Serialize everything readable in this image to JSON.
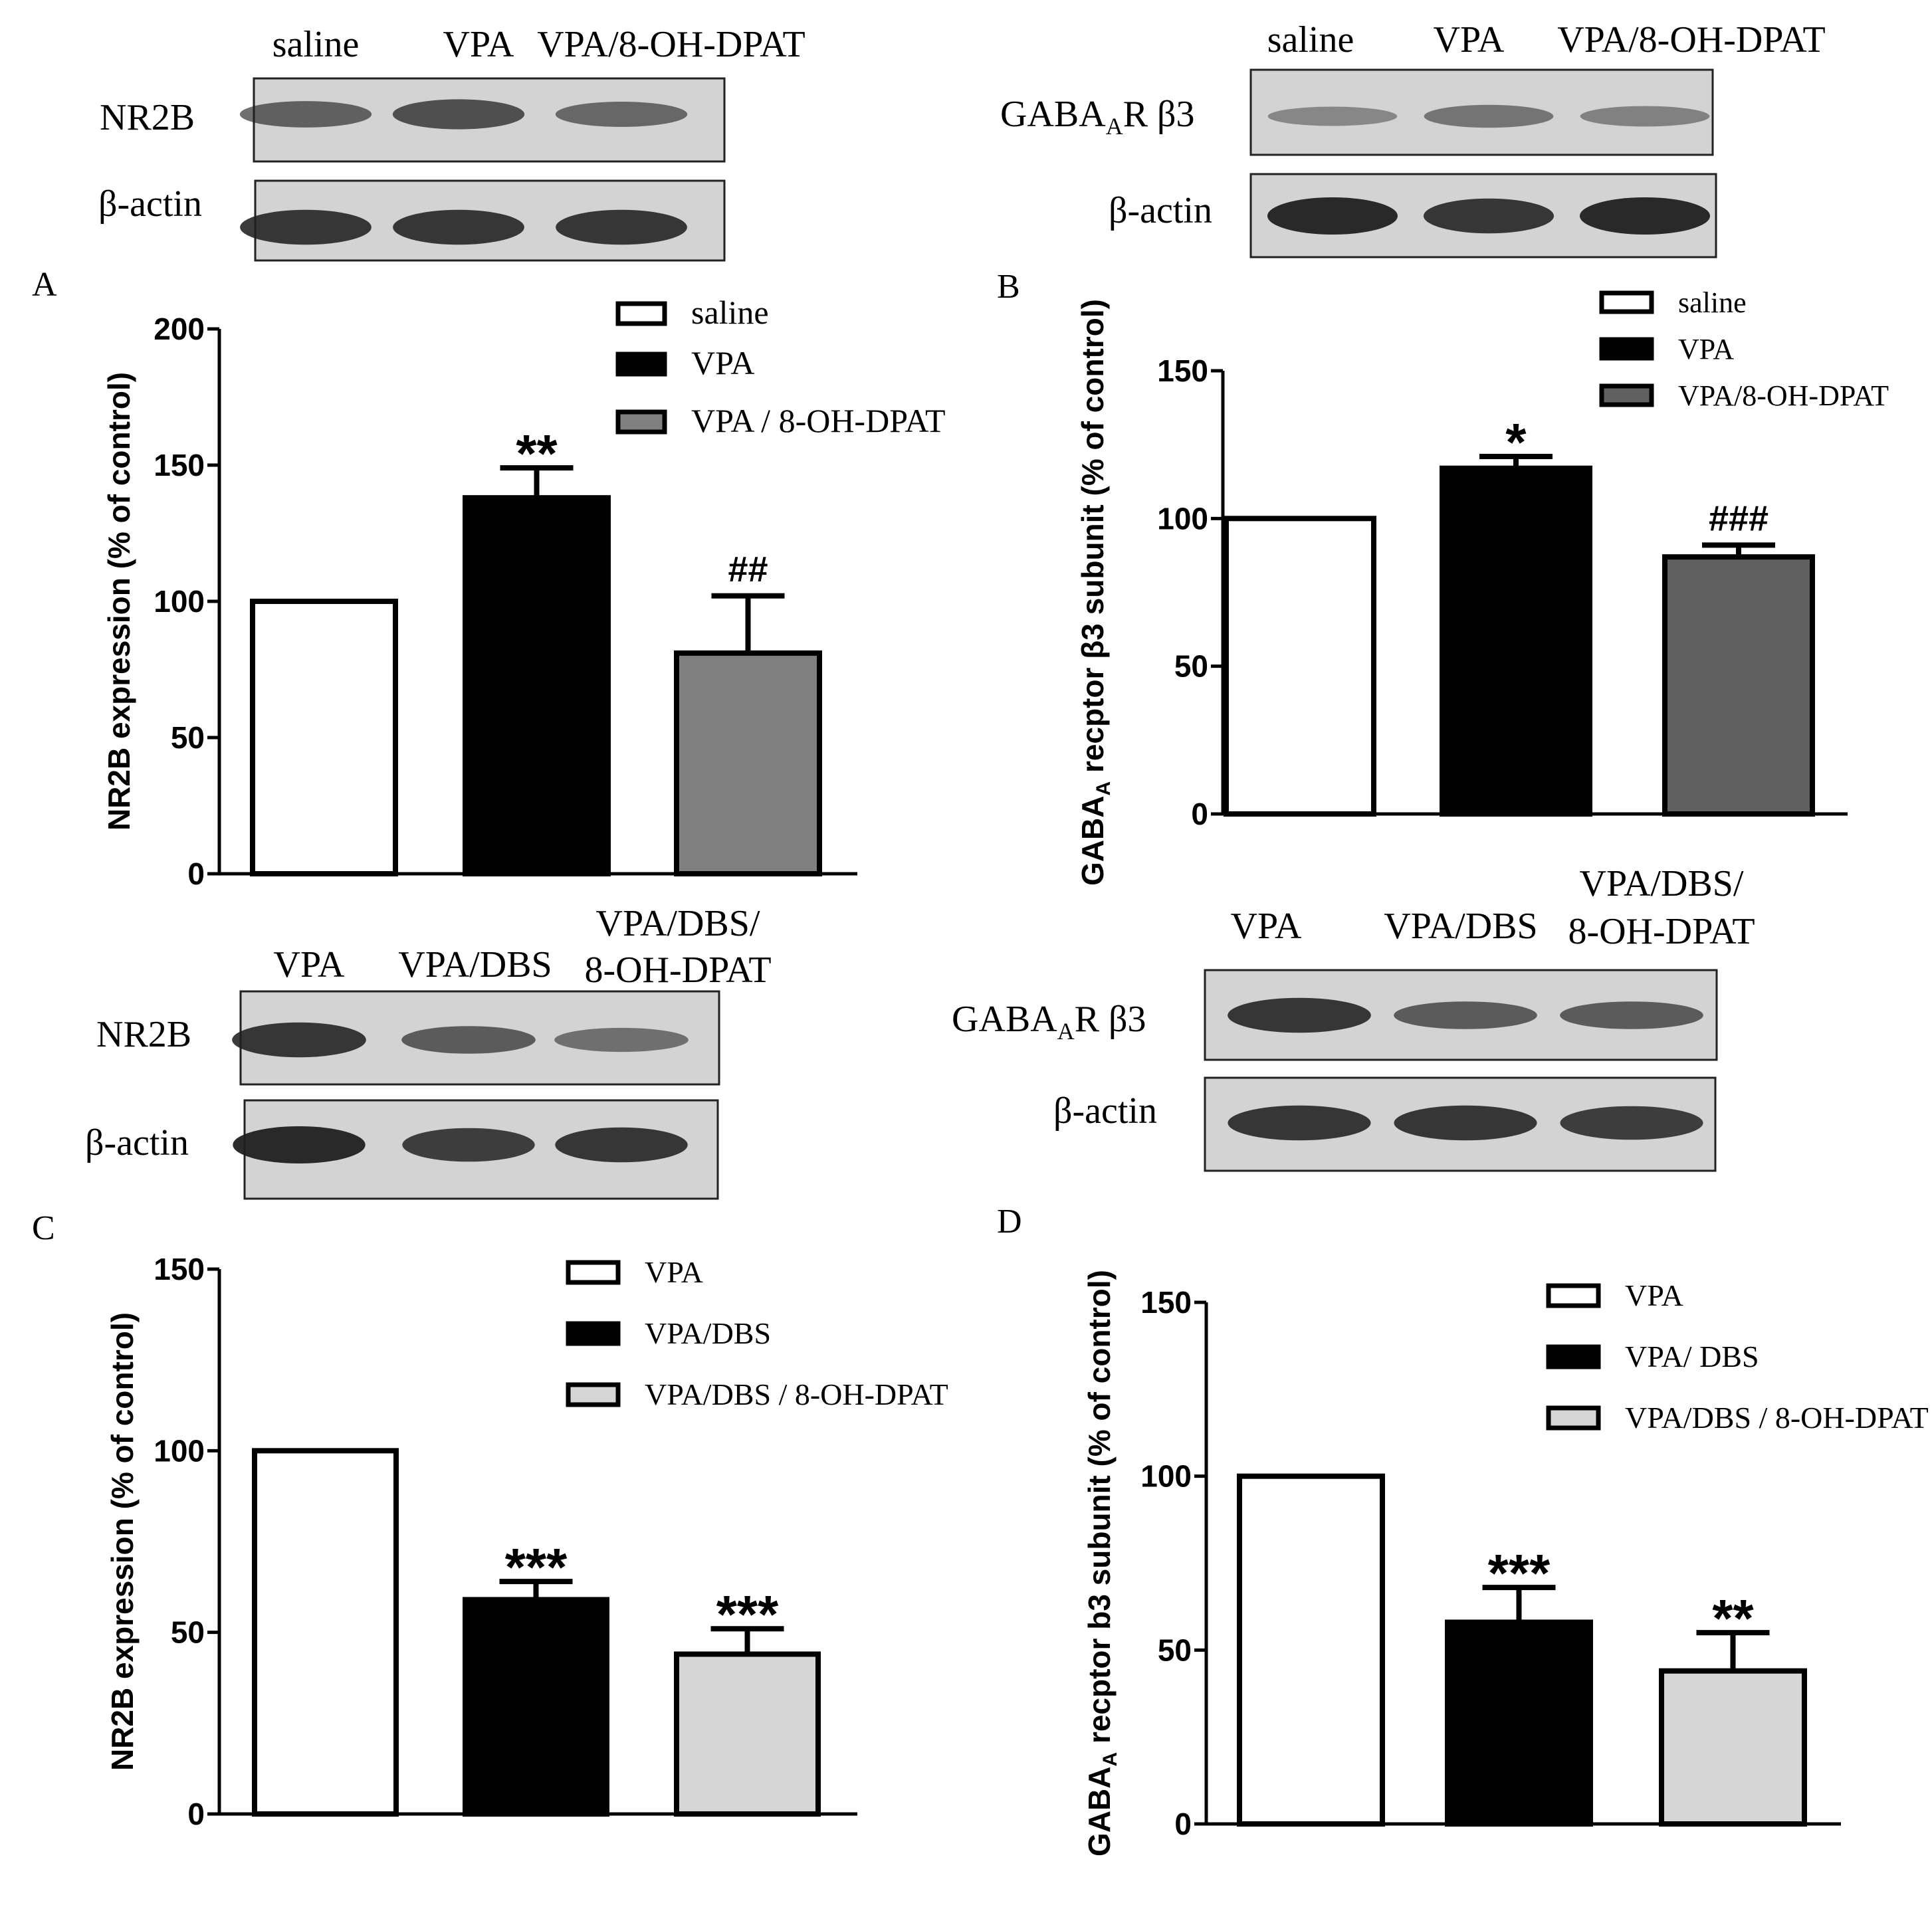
{
  "colors": {
    "white_bar": "#ffffff",
    "black_bar": "#000000",
    "gray_bar_A": "#808080",
    "gray_bar_B": "#606060",
    "lightgray_bar": "#d6d6d6",
    "blot_bg": "#d3d3d3",
    "band": "#202020"
  },
  "blots": {
    "A": {
      "lanes": [
        "saline",
        "VPA",
        "VPA/8-OH-DPAT"
      ],
      "protein": "NR2B",
      "loading": "β-actin",
      "protein_band_strength": [
        0.55,
        0.7,
        0.5
      ],
      "loading_band_strength": [
        0.9,
        0.9,
        0.9
      ]
    },
    "B": {
      "lanes": [
        "saline",
        "VPA",
        "VPA/8-OH-DPAT"
      ],
      "protein": "GABA",
      "protein_sub": "A",
      "protein_tail": "R β3",
      "loading": "β-actin",
      "protein_band_strength": [
        0.25,
        0.4,
        0.3
      ],
      "loading_band_strength": [
        1.0,
        0.9,
        1.0
      ]
    },
    "C": {
      "lanes": [
        "VPA",
        "VPA/DBS",
        "VPA/DBS/",
        "8-OH-DPAT"
      ],
      "protein": "NR2B",
      "loading": "β-actin",
      "protein_band_strength": [
        0.9,
        0.6,
        0.45
      ],
      "loading_band_strength": [
        1.0,
        0.85,
        0.9
      ]
    },
    "D": {
      "lanes": [
        "VPA",
        "VPA/DBS",
        "VPA/DBS/",
        "8-OH-DPAT"
      ],
      "protein": "GABA",
      "protein_sub": "A",
      "protein_tail": "R β3",
      "loading": "β-actin",
      "protein_band_strength": [
        0.9,
        0.6,
        0.6
      ],
      "loading_band_strength": [
        0.9,
        0.9,
        0.85
      ]
    }
  },
  "chart_data": [
    {
      "panel": "A",
      "type": "bar",
      "ylabel": "NR2B expression (% of control)",
      "ylim": [
        0,
        200
      ],
      "yticks": [
        "0",
        "50",
        "100",
        "150",
        "200"
      ],
      "categories": [
        "saline",
        "VPA",
        "VPA / 8-OH-DPAT"
      ],
      "values": [
        100,
        138,
        81
      ],
      "errors": [
        0,
        11,
        21
      ],
      "significance": [
        "",
        "**",
        "##"
      ],
      "legend": [
        "saline",
        "VPA",
        "VPA / 8-OH-DPAT"
      ],
      "bar_colors": [
        "#ffffff",
        "#000000",
        "#808080"
      ],
      "legend_position": "top-right"
    },
    {
      "panel": "B",
      "type": "bar",
      "ylabel": "GABA",
      "ylabel_sub": "A",
      "ylabel_tail": " recptor β3 subunit (% of control)",
      "ylim": [
        0,
        150
      ],
      "yticks": [
        "0",
        "50",
        "100",
        "150"
      ],
      "categories": [
        "saline",
        "VPA",
        "VPA/8-OH-DPAT"
      ],
      "values": [
        100,
        117,
        87
      ],
      "errors": [
        0,
        4,
        4
      ],
      "significance": [
        "",
        "*",
        "###"
      ],
      "legend": [
        "saline",
        "VPA",
        "VPA/8-OH-DPAT"
      ],
      "bar_colors": [
        "#ffffff",
        "#000000",
        "#606060"
      ],
      "legend_position": "top-right"
    },
    {
      "panel": "C",
      "type": "bar",
      "ylabel": "NR2B expression (% of control)",
      "ylim": [
        0,
        150
      ],
      "yticks": [
        "0",
        "50",
        "100",
        "150"
      ],
      "categories": [
        "VPA",
        "VPA/DBS",
        "VPA/DBS / 8-OH-DPAT"
      ],
      "values": [
        100,
        59,
        44
      ],
      "errors": [
        0,
        5,
        7
      ],
      "significance": [
        "",
        "***",
        "***"
      ],
      "legend": [
        "VPA",
        "VPA/DBS",
        "VPA/DBS / 8-OH-DPAT"
      ],
      "bar_colors": [
        "#ffffff",
        "#000000",
        "#d6d6d6"
      ],
      "legend_position": "top-right"
    },
    {
      "panel": "D",
      "type": "bar",
      "ylabel": "GABA",
      "ylabel_sub": "A",
      "ylabel_tail": " recptor b3 subunit (% of control)",
      "ylim": [
        0,
        150
      ],
      "yticks": [
        "0",
        "50",
        "100",
        "150"
      ],
      "categories": [
        "VPA",
        "VPA/ DBS",
        "VPA/DBS / 8-OH-DPAT"
      ],
      "values": [
        100,
        58,
        44
      ],
      "errors": [
        0,
        10,
        11
      ],
      "significance": [
        "",
        "***",
        "**"
      ],
      "legend": [
        "VPA",
        "VPA/ DBS",
        "VPA/DBS / 8-OH-DPAT"
      ],
      "bar_colors": [
        "#ffffff",
        "#000000",
        "#d6d6d6"
      ],
      "legend_position": "top-right"
    }
  ]
}
